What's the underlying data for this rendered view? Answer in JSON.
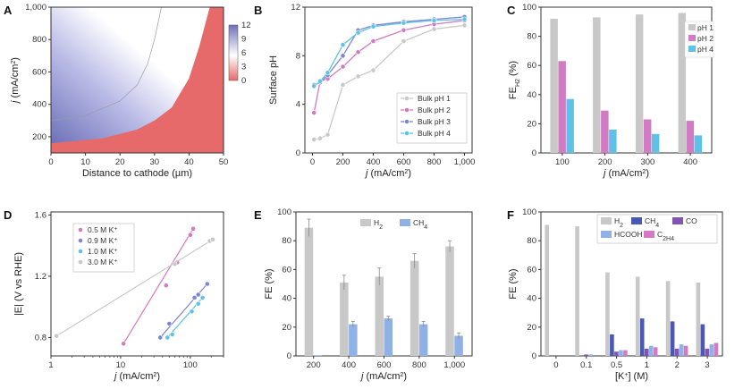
{
  "colors": {
    "gray": "#c8c8c8",
    "pink": "#d17bc4",
    "blue": "#8ea8e0",
    "purple": "#7d86cf",
    "cyan": "#5ec2e8",
    "navy": "#4a57b3",
    "violet": "#8455b0",
    "lightblue": "#8fb1e6",
    "magenta": "#d778c6",
    "heat_blue": "#6e71b8",
    "heat_red": "#e66a6a"
  },
  "chart_data": [
    {
      "panel": "A",
      "type": "heatmap",
      "xlabel": "Distance to cathode (µm)",
      "ylabel": "j (mA/cm²)",
      "xlim": [
        0,
        50
      ],
      "ylim": [
        100,
        1000
      ],
      "xticks": [
        0,
        10,
        20,
        30,
        40,
        50
      ],
      "yticks": [
        200,
        400,
        600,
        800,
        1000
      ],
      "ytick_labels": [
        "200",
        "400",
        "600",
        "800",
        "1,000"
      ],
      "colorbar": {
        "ticks": [
          0,
          3,
          6,
          9,
          12
        ],
        "range": [
          0,
          12
        ]
      },
      "neutral_boundary": [
        [
          0,
          160
        ],
        [
          15,
          190
        ],
        [
          25,
          245
        ],
        [
          30,
          300
        ],
        [
          35,
          380
        ],
        [
          40,
          560
        ],
        [
          43,
          760
        ],
        [
          46,
          1000
        ]
      ],
      "contour_line": [
        [
          0,
          300
        ],
        [
          10,
          330
        ],
        [
          20,
          420
        ],
        [
          25,
          520
        ],
        [
          28,
          650
        ],
        [
          30,
          800
        ],
        [
          32,
          1000
        ]
      ]
    },
    {
      "panel": "B",
      "type": "line",
      "xlabel": "j (mA/cm²)",
      "ylabel": "Surface pH",
      "xlim": [
        -50,
        1050
      ],
      "ylim": [
        0,
        12
      ],
      "xticks": [
        0,
        200,
        400,
        600,
        800,
        1000
      ],
      "xtick_labels": [
        "0",
        "200",
        "400",
        "600",
        "800",
        "1,000"
      ],
      "yticks": [
        0,
        4,
        8,
        12
      ],
      "legend_position": "bottom-right",
      "series": [
        {
          "name": "Bulk pH 1",
          "color": "gray",
          "x": [
            10,
            50,
            100,
            200,
            300,
            400,
            600,
            800,
            1000
          ],
          "values": [
            1.1,
            1.2,
            1.5,
            5.6,
            6.3,
            6.8,
            9.2,
            10.2,
            10.5
          ]
        },
        {
          "name": "Bulk pH 2",
          "color": "pink",
          "x": [
            10,
            50,
            100,
            200,
            300,
            400,
            600,
            800,
            1000
          ],
          "values": [
            3.3,
            5.9,
            6.1,
            7.1,
            8.3,
            9.2,
            10.1,
            10.6,
            10.9
          ]
        },
        {
          "name": "Bulk pH 3",
          "color": "purple",
          "x": [
            10,
            50,
            100,
            200,
            300,
            400,
            600,
            800,
            1000
          ],
          "values": [
            5.6,
            5.8,
            6.4,
            8.0,
            10.1,
            10.5,
            10.8,
            11.0,
            11.2
          ]
        },
        {
          "name": "Bulk pH 4",
          "color": "cyan",
          "x": [
            10,
            50,
            100,
            200,
            300,
            400,
            600,
            800,
            1000
          ],
          "values": [
            5.5,
            5.9,
            6.6,
            8.9,
            9.9,
            10.4,
            10.7,
            10.9,
            11.0
          ]
        }
      ]
    },
    {
      "panel": "C",
      "type": "bar",
      "xlabel": "j (mA/cm²)",
      "ylabel": "FE",
      "ylabel_sub": "H2",
      "ylabel_unit": " (%)",
      "ylim": [
        0,
        100
      ],
      "yticks": [
        0,
        20,
        40,
        60,
        80,
        100
      ],
      "categories": [
        "100",
        "200",
        "300",
        "400"
      ],
      "legend_position": "top-right",
      "series": [
        {
          "name": "pH 1",
          "color": "gray",
          "values": [
            92,
            93,
            95,
            96
          ]
        },
        {
          "name": "pH 2",
          "color": "pink",
          "values": [
            63,
            29,
            23,
            22
          ]
        },
        {
          "name": "pH 4",
          "color": "cyan",
          "values": [
            37,
            16,
            13,
            12
          ]
        }
      ]
    },
    {
      "panel": "D",
      "type": "scatter",
      "xlabel": "j (mA/cm²)",
      "ylabel": "|E| (V vs RHE)",
      "xscale": "log",
      "xlim": [
        1,
        300
      ],
      "ylim": [
        0.68,
        1.62
      ],
      "xticks": [
        1,
        10,
        100
      ],
      "yticks": [
        0.8,
        1.2,
        1.6
      ],
      "ytick_labels": [
        "0.8",
        "1.2",
        "1.6"
      ],
      "legend_position": "top-left",
      "series": [
        {
          "name": "0.5 M K⁺",
          "color": "pink",
          "x": [
            11,
            45,
            65,
            100,
            110
          ],
          "values": [
            0.76,
            1.14,
            1.29,
            1.47,
            1.51
          ],
          "fit": [
            [
              11,
              0.76
            ],
            [
              110,
              1.51
            ]
          ]
        },
        {
          "name": "0.9 M K⁺",
          "color": "purple",
          "x": [
            37,
            50,
            115,
            130,
            175
          ],
          "values": [
            0.8,
            0.89,
            1.06,
            1.08,
            1.15
          ],
          "fit": [
            [
              37,
              0.8
            ],
            [
              175,
              1.15
            ]
          ]
        },
        {
          "name": "1.0 M K⁺",
          "color": "cyan",
          "x": [
            47,
            55,
            105,
            130,
            150
          ],
          "values": [
            0.8,
            0.82,
            0.97,
            1.02,
            1.06
          ],
          "fit": [
            [
              47,
              0.8
            ],
            [
              150,
              1.06
            ]
          ]
        },
        {
          "name": "3.0 M K⁺",
          "color": "gray",
          "x": [
            1.2,
            60,
            190,
            210
          ],
          "values": [
            0.81,
            1.28,
            1.43,
            1.44
          ],
          "fit": [
            [
              1.2,
              0.81
            ],
            [
              210,
              1.44
            ]
          ]
        }
      ]
    },
    {
      "panel": "E",
      "type": "bar",
      "xlabel": "j (mA/cm²)",
      "ylabel": "FE (%)",
      "ylim": [
        0,
        100
      ],
      "yticks": [
        0,
        20,
        40,
        60,
        80,
        100
      ],
      "categories": [
        "200",
        "400",
        "600",
        "800",
        "1,000"
      ],
      "legend_position": "top-center",
      "series": [
        {
          "name": "H",
          "sub": "2",
          "color": "gray",
          "values": [
            89,
            51,
            55,
            66,
            76
          ],
          "errors": [
            6,
            5,
            6,
            5,
            4
          ]
        },
        {
          "name": "CH",
          "sub": "4",
          "color": "lightblue",
          "values": [
            0.5,
            22,
            26,
            22,
            14
          ],
          "errors": [
            0,
            2,
            1.5,
            2,
            2
          ]
        }
      ]
    },
    {
      "panel": "F",
      "type": "bar",
      "xlabel": "[K⁺] (M)",
      "ylabel": "FE (%)",
      "ylim": [
        0,
        100
      ],
      "yticks": [
        0,
        20,
        40,
        60,
        80,
        100
      ],
      "categories": [
        "0",
        "0.1",
        "0.5",
        "1",
        "2",
        "3"
      ],
      "legend_position": "top-right",
      "series": [
        {
          "name": "H",
          "sub": "2",
          "color": "gray",
          "values": [
            91,
            90,
            58,
            55,
            52,
            51
          ]
        },
        {
          "name": "CH",
          "sub": "4",
          "color": "navy",
          "values": [
            0,
            0,
            15,
            26,
            24,
            22
          ]
        },
        {
          "name": "CO",
          "sub": "",
          "color": "violet",
          "values": [
            0,
            1,
            3,
            5,
            5,
            5
          ]
        },
        {
          "name": "HCOOH",
          "sub": "",
          "color": "lightblue",
          "values": [
            0,
            1,
            4,
            7,
            8,
            8
          ]
        },
        {
          "name": "C",
          "sub": "2H4",
          "color": "magenta",
          "values": [
            0,
            0,
            4,
            6,
            7,
            9
          ]
        }
      ]
    }
  ]
}
